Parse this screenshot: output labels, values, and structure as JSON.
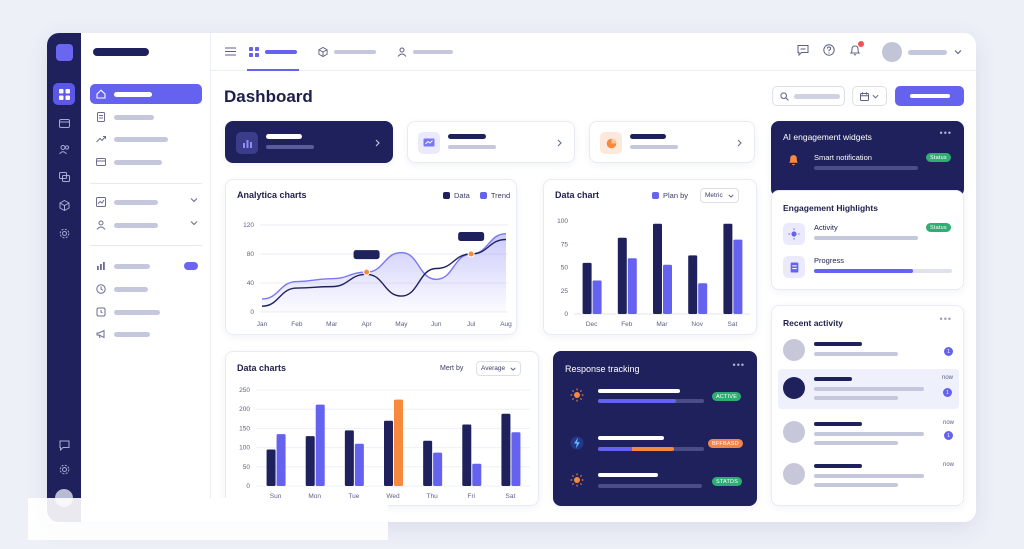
{
  "page": {
    "title": "Dashboard"
  },
  "analytics_card": {
    "title": "Analytica charts",
    "legend": [
      "Data",
      "Trend"
    ]
  },
  "data_chart_card": {
    "title": "Data chart",
    "legend_label": "Plan by",
    "select_value": "Metric"
  },
  "data_charts_card": {
    "title": "Data charts",
    "sort_label": "Mert by",
    "select_value": "Average"
  },
  "ai_card": {
    "title": "AI engagement widgets",
    "item_label": "Smart notification",
    "badge": "Status"
  },
  "highlights_card": {
    "title": "Engagement Highlights",
    "items": [
      {
        "label": "Activity",
        "badge": "Status"
      },
      {
        "label": "Progress",
        "progress": 0.72
      }
    ]
  },
  "response_card": {
    "title": "Response tracking",
    "rows": [
      {
        "badge": "ACTIVE",
        "badge_color": "#2fae74",
        "progress": 0.74
      },
      {
        "badge": "BFFBASD",
        "badge_color": "#f2844a",
        "progress": 0.72
      },
      {
        "badge": "STATDS",
        "badge_color": "#2fae74",
        "progress": 0.0
      }
    ]
  },
  "recent_card": {
    "title": "Recent activity",
    "items": [
      {
        "time": "",
        "dot": "1"
      },
      {
        "time": "now",
        "dot": "1"
      },
      {
        "time": "now",
        "dot": "1"
      },
      {
        "time": "now",
        "dot": ""
      }
    ]
  },
  "colors": {
    "accent": "#6462ee",
    "navy": "#1f215c",
    "orange": "#f7893f",
    "green": "#2fae74"
  },
  "chart_data": [
    {
      "type": "line",
      "title": "Analytica charts",
      "categories": [
        "Jan",
        "Feb",
        "Mar",
        "Apr",
        "May",
        "Jun",
        "Jul",
        "Aug"
      ],
      "yticks": [
        "0",
        "20",
        "40",
        "60",
        "80",
        "100",
        "120"
      ],
      "ylim": [
        0,
        120
      ],
      "series": [
        {
          "name": "Data",
          "values": [
            8,
            33,
            35,
            52,
            22,
            60,
            80,
            100
          ]
        },
        {
          "name": "Trend",
          "values": [
            18,
            42,
            46,
            55,
            82,
            45,
            80,
            108
          ]
        }
      ],
      "highlight_points": [
        {
          "x": "Apr",
          "y": 55
        },
        {
          "x": "Jul",
          "y": 80
        }
      ],
      "grid": true
    },
    {
      "type": "bar",
      "title": "Data chart",
      "categories": [
        "Dec",
        "Feb",
        "Mar",
        "Nov",
        "Sat"
      ],
      "yticks": [
        "0",
        "25",
        "50",
        "75",
        "100"
      ],
      "ylim": [
        0,
        100
      ],
      "series": [
        {
          "name": "",
          "values": [
            55,
            82,
            97,
            63,
            97
          ]
        },
        {
          "name": "Plan by",
          "values": [
            36,
            60,
            53,
            33,
            80
          ]
        }
      ]
    },
    {
      "type": "bar",
      "title": "Data charts",
      "categories": [
        "Sun",
        "Mon",
        "Tue",
        "Wed",
        "Thu",
        "Fri",
        "Sat"
      ],
      "yticks": [
        "0",
        "50",
        "100",
        "150",
        "200",
        "250"
      ],
      "ylim": [
        0,
        250
      ],
      "series": [
        {
          "name": "",
          "values": [
            95,
            130,
            145,
            170,
            118,
            160,
            188
          ]
        },
        {
          "name": "",
          "values": [
            135,
            212,
            110,
            225,
            87,
            58,
            140
          ]
        }
      ],
      "highlight_bar": {
        "category": "Wed",
        "series": 1,
        "color": "#f7893f"
      }
    }
  ]
}
